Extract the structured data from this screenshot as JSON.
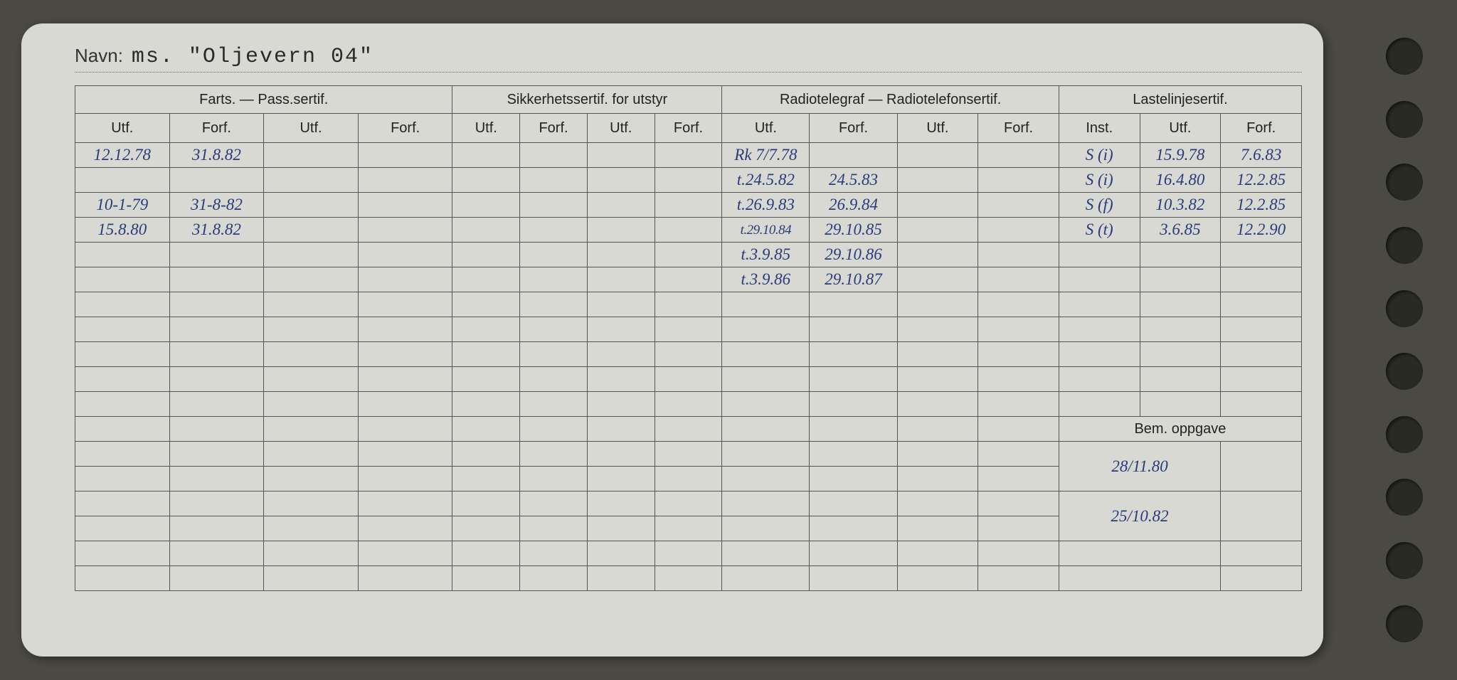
{
  "name_label": "Navn:",
  "name_value": "ms. \"Oljevern 04\"",
  "groups": {
    "farts": "Farts. — Pass.sertif.",
    "sikkerhets": "Sikkerhetssertif. for utstyr",
    "radio": "Radiotelegraf — Radiotelefonsertif.",
    "laste": "Lastelinjesertif."
  },
  "cols": {
    "utf": "Utf.",
    "forf": "Forf.",
    "inst": "Inst."
  },
  "bem_label": "Bem. oppgave",
  "rows": [
    {
      "f1": "12.12.78",
      "f2": "31.8.82",
      "r1": "Rk 7/7.78",
      "r2": "",
      "l1": "S (i)",
      "l2": "15.9.78",
      "l3": "7.6.83"
    },
    {
      "f1": "",
      "f2": "",
      "r1": "t.24.5.82",
      "r2": "24.5.83",
      "l1": "S (i)",
      "l2": "16.4.80",
      "l3": "12.2.85"
    },
    {
      "f1": "10-1-79",
      "f2": "31-8-82",
      "r1": "t.26.9.83",
      "r2": "26.9.84",
      "l1": "S (f)",
      "l2": "10.3.82",
      "l3": "12.2.85"
    },
    {
      "f1": "15.8.80",
      "f2": "31.8.82",
      "r1": "t.29.10.84",
      "r2": "29.10.85",
      "l1": "S (t)",
      "l2": "3.6.85",
      "l3": "12.2.90"
    },
    {
      "f1": "",
      "f2": "",
      "r1": "t.3.9.85",
      "r2": "29.10.86",
      "l1": "",
      "l2": "",
      "l3": ""
    },
    {
      "f1": "",
      "f2": "",
      "r1": "t.3.9.86",
      "r2": "29.10.87",
      "l1": "",
      "l2": "",
      "l3": ""
    }
  ],
  "bem_rows": [
    "28/11.80",
    "25/10.82"
  ],
  "colors": {
    "paper": "#d8d9d3",
    "ink_print": "#333333",
    "ink_hand": "#2b3a7a",
    "border": "#555555",
    "background": "#4a4a42"
  }
}
